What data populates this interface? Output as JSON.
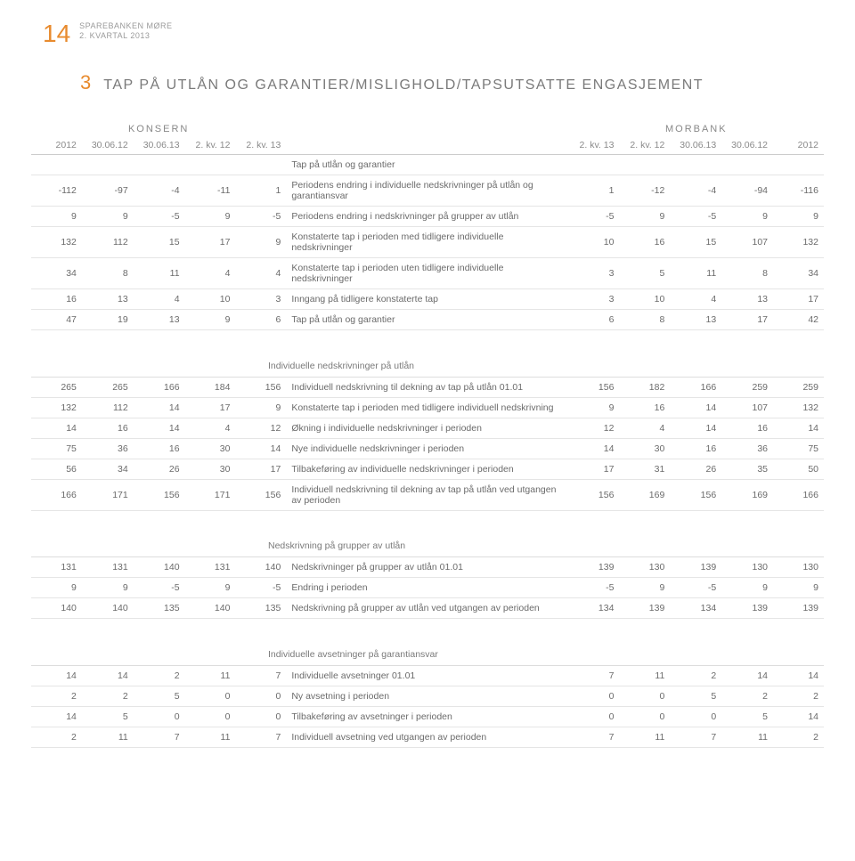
{
  "header": {
    "page_number": "14",
    "brand_line1": "SPAREBANKEN MØRE",
    "brand_line2": "2. KVARTAL 2013"
  },
  "title": {
    "num": "3",
    "text": "TAP PÅ UTLÅN OG GARANTIER/MISLIGHOLD/TAPSUTSATTE ENGASJEMENT"
  },
  "groups": {
    "konsern": "KONSERN",
    "morbank": "MORBANK"
  },
  "columns": {
    "k": [
      "2012",
      "30.06.12",
      "30.06.13",
      "2. kv. 12",
      "2. kv. 13"
    ],
    "m": [
      "2. kv. 13",
      "2. kv. 12",
      "30.06.13",
      "30.06.12",
      "2012"
    ]
  },
  "section1": {
    "rows": [
      {
        "k": [
          "",
          "",
          "",
          "",
          ""
        ],
        "label": "Tap på utlån og garantier",
        "m": [
          "",
          "",
          "",
          "",
          ""
        ]
      },
      {
        "k": [
          "-112",
          "-97",
          "-4",
          "-11",
          "1"
        ],
        "label": "Periodens endring i individuelle nedskrivninger på utlån og garantiansvar",
        "m": [
          "1",
          "-12",
          "-4",
          "-94",
          "-116"
        ]
      },
      {
        "k": [
          "9",
          "9",
          "-5",
          "9",
          "-5"
        ],
        "label": "Periodens endring i nedskrivninger på grupper av utlån",
        "m": [
          "-5",
          "9",
          "-5",
          "9",
          "9"
        ]
      },
      {
        "k": [
          "132",
          "112",
          "15",
          "17",
          "9"
        ],
        "label": "Konstaterte tap i perioden med tidligere individuelle nedskrivninger",
        "m": [
          "10",
          "16",
          "15",
          "107",
          "132"
        ]
      },
      {
        "k": [
          "34",
          "8",
          "11",
          "4",
          "4"
        ],
        "label": "Konstaterte tap i perioden uten tidligere individuelle nedskrivninger",
        "m": [
          "3",
          "5",
          "11",
          "8",
          "34"
        ]
      },
      {
        "k": [
          "16",
          "13",
          "4",
          "10",
          "3"
        ],
        "label": "Inngang på tidligere konstaterte tap",
        "m": [
          "3",
          "10",
          "4",
          "13",
          "17"
        ]
      },
      {
        "k": [
          "47",
          "19",
          "13",
          "9",
          "6"
        ],
        "label": "Tap på utlån og garantier",
        "m": [
          "6",
          "8",
          "13",
          "17",
          "42"
        ]
      }
    ]
  },
  "section2": {
    "title": "Individuelle nedskrivninger på utlån",
    "rows": [
      {
        "k": [
          "265",
          "265",
          "166",
          "184",
          "156"
        ],
        "label": "Individuell nedskrivning til dekning av tap på utlån 01.01",
        "m": [
          "156",
          "182",
          "166",
          "259",
          "259"
        ]
      },
      {
        "k": [
          "132",
          "112",
          "14",
          "17",
          "9"
        ],
        "label": "Konstaterte tap i perioden med tidligere individuell nedskrivning",
        "m": [
          "9",
          "16",
          "14",
          "107",
          "132"
        ]
      },
      {
        "k": [
          "14",
          "16",
          "14",
          "4",
          "12"
        ],
        "label": "Økning i individuelle nedskrivninger i perioden",
        "m": [
          "12",
          "4",
          "14",
          "16",
          "14"
        ]
      },
      {
        "k": [
          "75",
          "36",
          "16",
          "30",
          "14"
        ],
        "label": "Nye individuelle nedskrivninger i perioden",
        "m": [
          "14",
          "30",
          "16",
          "36",
          "75"
        ]
      },
      {
        "k": [
          "56",
          "34",
          "26",
          "30",
          "17"
        ],
        "label": "Tilbakeføring av individuelle nedskrivninger i perioden",
        "m": [
          "17",
          "31",
          "26",
          "35",
          "50"
        ]
      },
      {
        "k": [
          "166",
          "171",
          "156",
          "171",
          "156"
        ],
        "label": "Individuell nedskrivning til dekning av tap på utlån ved utgangen av perioden",
        "m": [
          "156",
          "169",
          "156",
          "169",
          "166"
        ]
      }
    ]
  },
  "section3": {
    "title": "Nedskrivning på grupper av utlån",
    "rows": [
      {
        "k": [
          "131",
          "131",
          "140",
          "131",
          "140"
        ],
        "label": "Nedskrivninger på grupper av utlån 01.01",
        "m": [
          "139",
          "130",
          "139",
          "130",
          "130"
        ]
      },
      {
        "k": [
          "9",
          "9",
          "-5",
          "9",
          "-5"
        ],
        "label": "Endring i perioden",
        "m": [
          "-5",
          "9",
          "-5",
          "9",
          "9"
        ]
      },
      {
        "k": [
          "140",
          "140",
          "135",
          "140",
          "135"
        ],
        "label": "Nedskrivning på grupper av utlån ved utgangen av perioden",
        "m": [
          "134",
          "139",
          "134",
          "139",
          "139"
        ]
      }
    ]
  },
  "section4": {
    "title": "Individuelle avsetninger på garantiansvar",
    "rows": [
      {
        "k": [
          "14",
          "14",
          "2",
          "11",
          "7"
        ],
        "label": "Individuelle avsetninger 01.01",
        "m": [
          "7",
          "11",
          "2",
          "14",
          "14"
        ]
      },
      {
        "k": [
          "2",
          "2",
          "5",
          "0",
          "0"
        ],
        "label": "Ny avsetning i perioden",
        "m": [
          "0",
          "0",
          "5",
          "2",
          "2"
        ]
      },
      {
        "k": [
          "14",
          "5",
          "0",
          "0",
          "0"
        ],
        "label": "Tilbakeføring av avsetninger i perioden",
        "m": [
          "0",
          "0",
          "0",
          "5",
          "14"
        ]
      },
      {
        "k": [
          "2",
          "11",
          "7",
          "11",
          "7"
        ],
        "label": "Individuell avsetning ved utgangen av perioden",
        "m": [
          "7",
          "11",
          "7",
          "11",
          "2"
        ]
      }
    ]
  }
}
